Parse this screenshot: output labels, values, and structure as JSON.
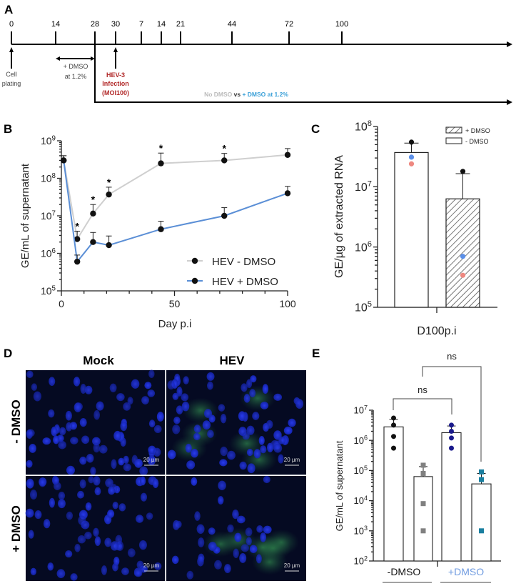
{
  "panel_letters": {
    "a": "A",
    "b": "B",
    "c": "C",
    "d": "D",
    "e": "E"
  },
  "timeline": {
    "tick_labels": [
      "0",
      "14",
      "28",
      "30",
      "7",
      "14",
      "21",
      "44",
      "72",
      "100"
    ],
    "cell_plating": [
      "Cell",
      "plating"
    ],
    "dmso_pre": [
      "+ DMSO",
      "at 1.2%"
    ],
    "infection": [
      "HEV-3",
      "Infection",
      "(MOI100)"
    ],
    "infection_color": "#b22a2a",
    "comparison_no": "No DMSO",
    "comparison_vs": " vs ",
    "comparison_plus": "+ DMSO at 1.2%",
    "no_dmso_color": "#bbbbbb",
    "plus_dmso_color": "#3aa0d8"
  },
  "microscopy": {
    "columns": [
      "Mock",
      "HEV"
    ],
    "rows": [
      "- DMSO",
      "+ DMSO"
    ],
    "scale_bar": "20 µm"
  },
  "chart_data": [
    {
      "panel": "B",
      "type": "line",
      "xlabel": "Day p.i",
      "ylabel": "GE/mL of supernatant",
      "yscale": "log",
      "xlim": [
        0,
        100
      ],
      "ylim": [
        100000,
        1000000000
      ],
      "xticks": [
        "0",
        "50",
        "100"
      ],
      "yticks": [
        [
          "10",
          "5"
        ],
        [
          "10",
          "6"
        ],
        [
          "10",
          "7"
        ],
        [
          "10",
          "8"
        ],
        [
          "10",
          "9"
        ]
      ],
      "legend_position": "bottom-right",
      "series": [
        {
          "name": "HEV - DMSO",
          "color": "#cfcfcf",
          "x": [
            1,
            7,
            14,
            21,
            44,
            72,
            100
          ],
          "y": [
            300000000,
            2400000,
            11500000,
            37000000,
            250000000,
            300000000,
            420000000
          ],
          "err_upper": [
            400000000,
            3900000,
            20000000,
            58000000,
            470000000,
            460000000,
            620000000
          ]
        },
        {
          "name": "HEV + DMSO",
          "color": "#5b8fd6",
          "x": [
            1,
            7,
            14,
            21,
            44,
            72,
            100
          ],
          "y": [
            300000000,
            600000,
            2000000,
            1650000,
            4400000,
            10000000,
            40000000
          ],
          "err_upper": [
            400000000,
            900000,
            3600000,
            2900000,
            7200000,
            16500000,
            61000000
          ]
        }
      ],
      "significance": {
        "symbol": "*",
        "x": [
          7,
          14,
          21,
          44,
          72
        ]
      }
    },
    {
      "panel": "C",
      "type": "bar",
      "xlabel": "D100p.i",
      "ylabel": "GE/µg of extracted RNA",
      "yscale": "log",
      "ylim": [
        100000,
        100000000
      ],
      "yticks": [
        [
          "10",
          "5"
        ],
        [
          "10",
          "6"
        ],
        [
          "10",
          "7"
        ],
        [
          "10",
          "8"
        ]
      ],
      "legend_position": "top-right",
      "legend": [
        "+ DMSO",
        "- DMSO"
      ],
      "bars": [
        {
          "name": "- DMSO",
          "fill": "white",
          "value": 37000000,
          "err_upper": 53000000,
          "points": [
            {
              "value": 55000000,
              "color": "#111111"
            },
            {
              "value": 31000000,
              "color": "#5b8fe8"
            },
            {
              "value": 24000000,
              "color": "#ee8880"
            }
          ]
        },
        {
          "name": "+ DMSO",
          "fill": "hatched",
          "value": 6300000,
          "err_upper": 16500000,
          "points": [
            {
              "value": 18000000,
              "color": "#111111"
            },
            {
              "value": 700000,
              "color": "#5b8fe8"
            },
            {
              "value": 340000,
              "color": "#ee8880"
            }
          ]
        }
      ]
    },
    {
      "panel": "E",
      "type": "bar",
      "ylabel": "GE/mL of supernatant",
      "yscale": "log",
      "ylim": [
        100,
        10000000
      ],
      "yticks": [
        [
          "10",
          "2"
        ],
        [
          "10",
          "3"
        ],
        [
          "10",
          "4"
        ],
        [
          "10",
          "5"
        ],
        [
          "10",
          "6"
        ],
        [
          "10",
          "7"
        ]
      ],
      "groups": [
        {
          "label": "-DMSO",
          "color": "#111111"
        },
        {
          "label": "+DMSO",
          "color": "#6f9be0"
        }
      ],
      "bars": [
        {
          "value": 2800000,
          "err_upper": 5000000,
          "marker": "circle",
          "color": "#111111",
          "points": [
            5500000,
            3200000,
            1350000,
            550000
          ]
        },
        {
          "value": 63000,
          "err_upper": 135000,
          "marker": "square",
          "color": "#808080",
          "points": [
            150000,
            80000,
            8000,
            1000
          ]
        },
        {
          "value": 1800000,
          "err_upper": 3000000,
          "marker": "circle",
          "color": "#1a1a8c",
          "points": [
            3200000,
            2000000,
            1200000,
            550000
          ]
        },
        {
          "value": 36000,
          "err_upper": 80000,
          "marker": "square",
          "color": "#1a7fa0",
          "points": [
            90000,
            50000,
            1000
          ]
        }
      ],
      "comparisons": [
        {
          "from_bar": 1,
          "to_bar": 3,
          "label": "ns"
        },
        {
          "from_bar": 2,
          "to_bar": 4,
          "label": "ns"
        }
      ]
    }
  ]
}
